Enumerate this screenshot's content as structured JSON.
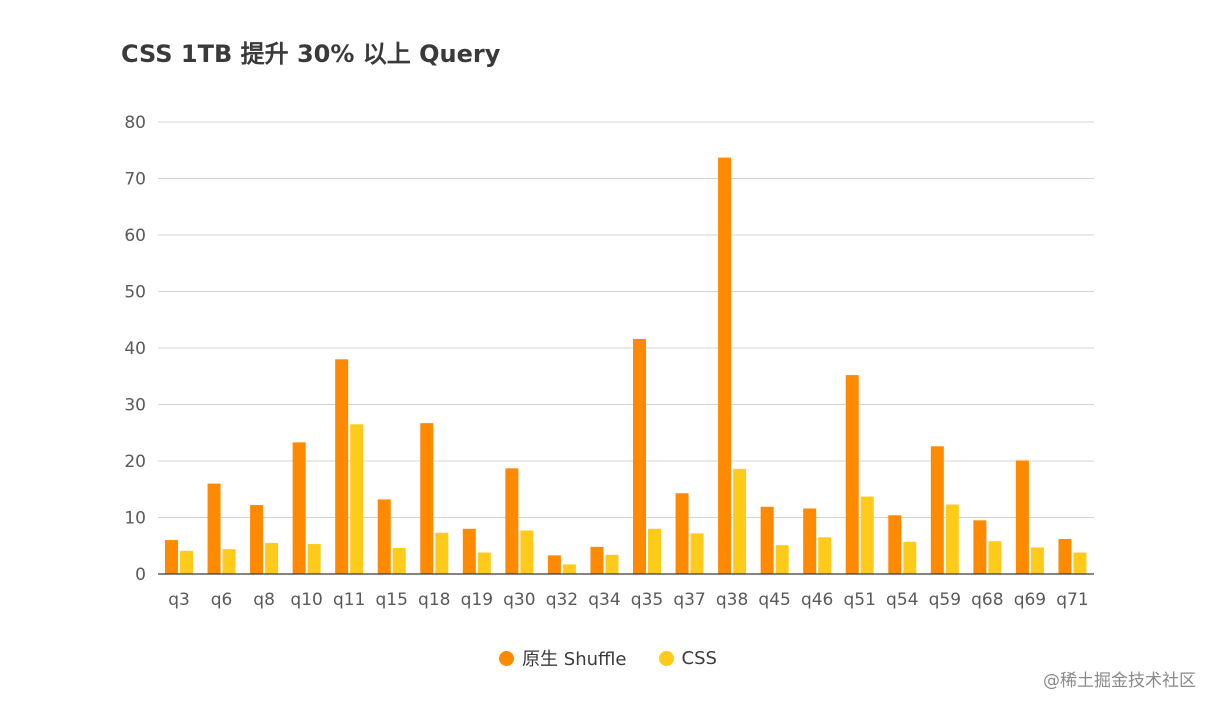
{
  "chart_data": {
    "type": "bar",
    "title": "CSS 1TB 提升 30% 以上 Query",
    "xlabel": "",
    "ylabel": "",
    "ylim": [
      0,
      80
    ],
    "yticks": [
      0,
      10,
      20,
      30,
      40,
      50,
      60,
      70,
      80
    ],
    "grid": true,
    "legend_position": "bottom",
    "categories": [
      "q3",
      "q6",
      "q8",
      "q10",
      "q11",
      "q15",
      "q18",
      "q19",
      "q30",
      "q32",
      "q34",
      "q35",
      "q37",
      "q38",
      "q45",
      "q46",
      "q51",
      "q54",
      "q59",
      "q68",
      "q69",
      "q71"
    ],
    "series": [
      {
        "name": "原生 Shuffle",
        "color": "#ff8a00",
        "values": [
          6.0,
          16.0,
          12.2,
          23.3,
          38.0,
          13.2,
          26.7,
          8.0,
          18.7,
          3.3,
          4.8,
          41.6,
          14.3,
          73.7,
          11.9,
          11.6,
          35.2,
          10.4,
          22.6,
          9.5,
          20.1,
          6.2
        ]
      },
      {
        "name": "CSS",
        "color": "#ffcb1a",
        "values": [
          4.1,
          4.4,
          5.5,
          5.3,
          26.5,
          4.6,
          7.3,
          3.8,
          7.7,
          1.7,
          3.4,
          8.0,
          7.2,
          18.6,
          5.1,
          6.5,
          13.7,
          5.7,
          12.3,
          5.8,
          4.7,
          3.8
        ]
      }
    ]
  },
  "watermark": "@稀土掘金技术社区"
}
